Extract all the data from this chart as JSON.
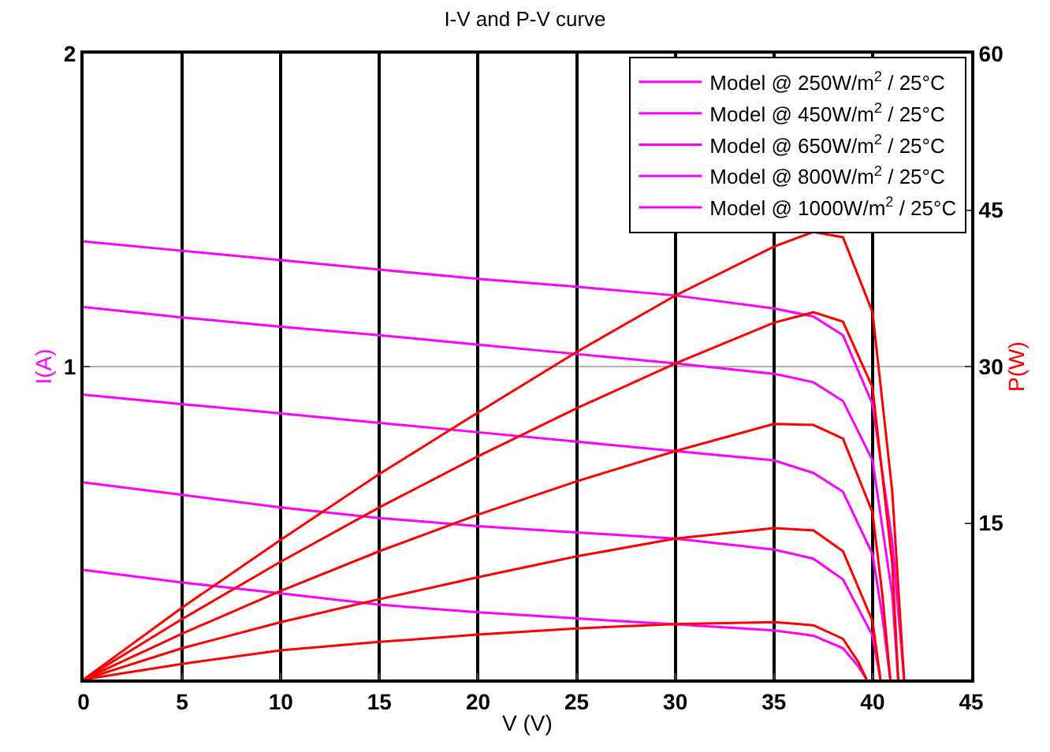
{
  "chart_data": {
    "type": "line",
    "title": "I-V and P-V curve",
    "xlabel": "V (V)",
    "ylabel": "I(A)",
    "y2label": "P(W)",
    "xlim": [
      0,
      45
    ],
    "xticks": [
      0,
      5,
      10,
      15,
      20,
      25,
      30,
      35,
      40,
      45
    ],
    "ylim": [
      0,
      2
    ],
    "yticks": [
      1,
      2
    ],
    "y2lim": [
      0,
      60
    ],
    "y2ticks": [
      15,
      30,
      45,
      60
    ],
    "grid": "x",
    "ref_lines": [
      {
        "axis": "y",
        "value": 1,
        "color": "#b0b0b0",
        "line_style": "solid"
      }
    ],
    "legend": "top right",
    "marker": "none",
    "line_style": "solid",
    "series": [
      {
        "name": "Model @ 250W/m$^{2}$ / 25°C",
        "color": "#ff00ff",
        "x": [
          0,
          5,
          10,
          15,
          20,
          25,
          30,
          35,
          37,
          38.5,
          39.3,
          39.7
        ],
        "values": [
          0.35,
          0.31,
          0.275,
          0.239,
          0.215,
          0.195,
          0.176,
          0.157,
          0.14,
          0.1,
          0.04,
          0
        ]
      },
      {
        "name": "Model @ 450W/m$^{2}$ / 25°C",
        "color": "#ff00ff",
        "x": [
          0,
          5,
          10,
          15,
          20,
          25,
          30,
          35,
          37,
          38.5,
          40,
          40.4
        ],
        "values": [
          0.63,
          0.59,
          0.55,
          0.516,
          0.49,
          0.47,
          0.45,
          0.415,
          0.386,
          0.32,
          0.14,
          0
        ]
      },
      {
        "name": "Model @ 650W/m$^{2}$ / 25°C",
        "color": "#ff00ff",
        "x": [
          0,
          5,
          10,
          15,
          20,
          25,
          30,
          35,
          37,
          38.5,
          40,
          40.5,
          40.9
        ],
        "values": [
          0.91,
          0.88,
          0.85,
          0.82,
          0.79,
          0.76,
          0.73,
          0.7,
          0.66,
          0.6,
          0.4,
          0.2,
          0
        ]
      },
      {
        "name": "Model @ 800W/m$^{2}$ / 25°C",
        "color": "#ff00ff",
        "x": [
          0,
          5,
          10,
          15,
          20,
          25,
          30,
          35,
          37,
          38.5,
          40,
          41,
          41.3
        ],
        "values": [
          1.19,
          1.157,
          1.127,
          1.1,
          1.07,
          1.04,
          1.01,
          0.977,
          0.95,
          0.89,
          0.7,
          0.27,
          0
        ]
      },
      {
        "name": "Model @ 1000W/m$^{2}$ / 25°C",
        "color": "#ff00ff",
        "x": [
          0,
          5,
          10,
          15,
          20,
          25,
          30,
          35,
          37,
          38.5,
          40,
          41,
          41.6
        ],
        "values": [
          1.4,
          1.37,
          1.34,
          1.31,
          1.28,
          1.255,
          1.227,
          1.186,
          1.16,
          1.1,
          0.88,
          0.44,
          0
        ]
      },
      {
        "color": "#ff0000",
        "axis": "y2",
        "x": [
          0,
          5,
          10,
          15,
          20,
          25,
          30,
          35,
          37,
          38.5,
          39.3,
          39.7
        ],
        "values": [
          0,
          1.5,
          2.8,
          3.6,
          4.3,
          4.9,
          5.3,
          5.5,
          5.2,
          3.9,
          1.6,
          0
        ]
      },
      {
        "color": "#ff0000",
        "axis": "y2",
        "x": [
          0,
          5,
          10,
          15,
          20,
          25,
          30,
          35,
          37,
          38.5,
          40,
          40.4
        ],
        "values": [
          0,
          3.0,
          5.5,
          7.7,
          9.8,
          11.8,
          13.5,
          14.5,
          14.3,
          12.3,
          5.6,
          0
        ]
      },
      {
        "color": "#ff0000",
        "axis": "y2",
        "x": [
          0,
          5,
          10,
          15,
          20,
          25,
          30,
          35,
          37,
          38.5,
          40,
          40.5,
          40.9
        ],
        "values": [
          0,
          4.4,
          8.5,
          12.3,
          15.8,
          19.0,
          21.9,
          24.5,
          24.4,
          23.1,
          16.0,
          8.1,
          0
        ]
      },
      {
        "color": "#ff0000",
        "axis": "y2",
        "x": [
          0,
          5,
          10,
          15,
          20,
          25,
          30,
          35,
          37,
          38.5,
          40,
          41,
          41.3
        ],
        "values": [
          0,
          5.8,
          11.3,
          16.5,
          21.4,
          26.0,
          30.3,
          34.2,
          35.2,
          34.3,
          28.0,
          11.1,
          0
        ]
      },
      {
        "color": "#ff0000",
        "axis": "y2",
        "x": [
          0,
          5,
          10,
          15,
          20,
          25,
          30,
          35,
          37,
          38.5,
          40,
          41,
          41.6
        ],
        "values": [
          0,
          6.9,
          13.4,
          19.7,
          25.6,
          31.4,
          36.8,
          41.5,
          42.9,
          42.4,
          35.2,
          18.0,
          0
        ]
      }
    ]
  }
}
